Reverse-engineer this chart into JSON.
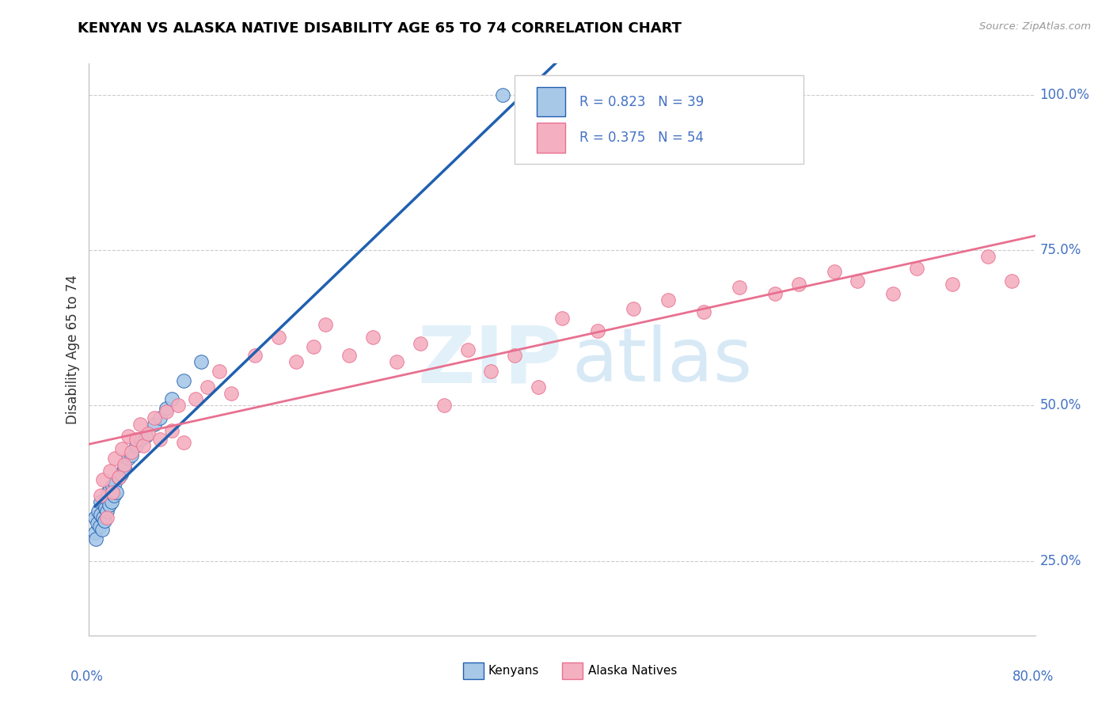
{
  "title": "KENYAN VS ALASKA NATIVE DISABILITY AGE 65 TO 74 CORRELATION CHART",
  "source": "Source: ZipAtlas.com",
  "ylabel": "Disability Age 65 to 74",
  "xlim": [
    0.0,
    0.8
  ],
  "ylim": [
    0.13,
    1.05
  ],
  "kenyan_R": "0.823",
  "kenyan_N": "39",
  "alaska_R": "0.375",
  "alaska_N": "54",
  "kenyan_color": "#a8c8e8",
  "alaska_color": "#f4b0c0",
  "kenyan_line_color": "#2060b0",
  "alaska_line_color": "#e87090",
  "kenyan_x": [
    0.005,
    0.005,
    0.007,
    0.008,
    0.009,
    0.01,
    0.01,
    0.012,
    0.013,
    0.014,
    0.015,
    0.016,
    0.017,
    0.018,
    0.019,
    0.02,
    0.021,
    0.022,
    0.023,
    0.025,
    0.026,
    0.027,
    0.028,
    0.03,
    0.032,
    0.034,
    0.036,
    0.038,
    0.04,
    0.043,
    0.046,
    0.05,
    0.055,
    0.06,
    0.065,
    0.07,
    0.08,
    0.35,
    0.42
  ],
  "kenyan_y": [
    0.3,
    0.32,
    0.28,
    0.35,
    0.31,
    0.33,
    0.36,
    0.29,
    0.34,
    0.32,
    0.35,
    0.37,
    0.31,
    0.38,
    0.33,
    0.36,
    0.39,
    0.34,
    0.37,
    0.4,
    0.35,
    0.38,
    0.42,
    0.37,
    0.4,
    0.43,
    0.38,
    0.41,
    0.44,
    0.4,
    0.43,
    0.45,
    0.47,
    0.48,
    0.5,
    0.52,
    0.57,
    1.0,
    1.0
  ],
  "alaska_x": [
    0.01,
    0.012,
    0.015,
    0.018,
    0.02,
    0.025,
    0.03,
    0.032,
    0.035,
    0.04,
    0.045,
    0.05,
    0.055,
    0.06,
    0.065,
    0.07,
    0.08,
    0.085,
    0.09,
    0.095,
    0.1,
    0.11,
    0.12,
    0.13,
    0.14,
    0.16,
    0.17,
    0.18,
    0.19,
    0.2,
    0.21,
    0.22,
    0.23,
    0.24,
    0.25,
    0.26,
    0.27,
    0.28,
    0.3,
    0.32,
    0.35,
    0.38,
    0.4,
    0.43,
    0.46,
    0.48,
    0.5,
    0.53,
    0.55,
    0.58,
    0.6,
    0.65,
    0.7,
    0.78
  ],
  "alaska_y": [
    0.35,
    0.38,
    0.32,
    0.4,
    0.36,
    0.39,
    0.41,
    0.44,
    0.37,
    0.43,
    0.46,
    0.42,
    0.48,
    0.45,
    0.5,
    0.47,
    0.44,
    0.51,
    0.48,
    0.53,
    0.5,
    0.55,
    0.52,
    0.48,
    0.57,
    0.6,
    0.55,
    0.58,
    0.52,
    0.63,
    0.57,
    0.6,
    0.65,
    0.62,
    0.58,
    0.55,
    0.6,
    0.63,
    0.5,
    0.58,
    0.55,
    0.53,
    0.68,
    0.65,
    0.58,
    0.62,
    0.68,
    0.65,
    0.7,
    0.68,
    0.7,
    0.65,
    0.68,
    0.7
  ],
  "background_color": "#ffffff",
  "grid_color": "#cccccc",
  "text_color_blue": "#4472c4",
  "watermark_color": "#d0e8f5"
}
